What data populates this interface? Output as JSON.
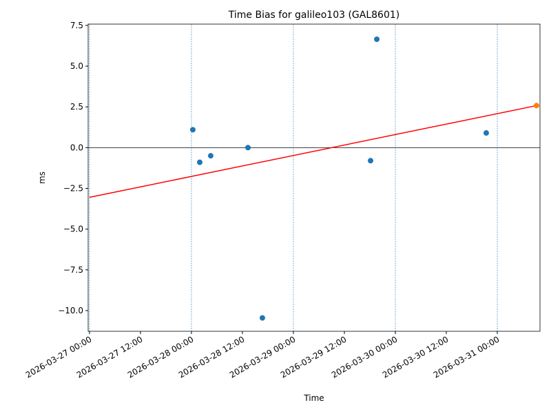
{
  "chart_data": {
    "type": "scatter",
    "title": "Time Bias for galileo103 (GAL8601)",
    "xlabel": "Time",
    "ylabel": "ms",
    "xlim": [
      "2026-03-26 23:41",
      "2026-03-31 10:03"
    ],
    "xticks": [
      "2026-03-27 00:00",
      "2026-03-27 12:00",
      "2026-03-28 00:00",
      "2026-03-28 12:00",
      "2026-03-29 00:00",
      "2026-03-29 12:00",
      "2026-03-30 00:00",
      "2026-03-30 12:00",
      "2026-03-31 00:00"
    ],
    "ylim": [
      -11.27,
      7.58
    ],
    "yticks": [
      7.5,
      {
        "value": 5,
        "label": "5.0"
      },
      2.5,
      {
        "value": 0,
        "label": "0.0"
      },
      {
        "value": -2.5,
        "label": "−2.5"
      },
      {
        "value": -5,
        "label": "−5.0"
      },
      {
        "value": -7.5,
        "label": "−7.5"
      },
      {
        "value": -10,
        "label": "−10.0"
      }
    ],
    "vlines": [
      "2026-03-27 00:00",
      "2026-03-28 00:00",
      "2026-03-29 00:00",
      "2026-03-30 00:00",
      "2026-03-31 00:00"
    ],
    "hline": 0,
    "series": [
      {
        "type": "scatter",
        "color": "#1f77b4",
        "x": [
          "2026-03-28 00:19",
          "2026-03-28 01:57",
          "2026-03-28 04:32",
          "2026-03-28 13:18",
          "2026-03-28 16:42",
          "2026-03-29 18:10",
          "2026-03-29 19:38",
          "2026-03-30 21:24"
        ],
        "values": [
          1.1,
          -0.9,
          -0.5,
          0.0,
          -10.45,
          -0.8,
          6.65,
          0.9
        ]
      },
      {
        "type": "line",
        "color": "#ff0000",
        "x": [
          "2026-03-27 00:00",
          "2026-03-31 09:14"
        ],
        "values": [
          -3.05,
          2.58
        ]
      },
      {
        "type": "scatter",
        "color": "#ff7f0e",
        "x": [
          "2026-03-31 09:14"
        ],
        "values": [
          2.58
        ]
      }
    ]
  }
}
